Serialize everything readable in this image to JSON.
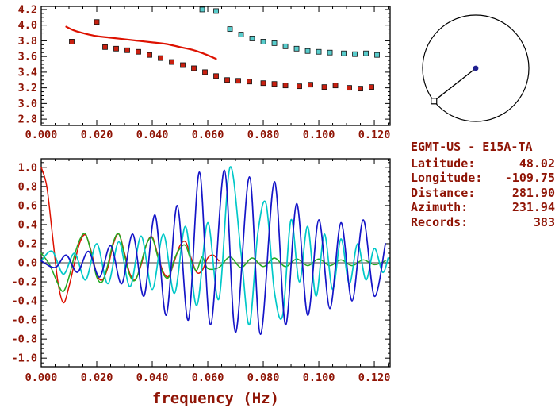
{
  "station": {
    "title": "EGMT-US - E15A-TA",
    "rows": [
      {
        "label": "Latitude:",
        "value": "48.02"
      },
      {
        "label": "Longitude:",
        "value": "-109.75"
      },
      {
        "label": "Distance:",
        "value": "281.90"
      },
      {
        "label": "Azimuth:",
        "value": "231.94"
      },
      {
        "label": "Records:",
        "value": "383"
      }
    ]
  },
  "compass": {
    "azimuth_deg": 231.94
  },
  "colors": {
    "text": "#8f1405",
    "frame": "#000000",
    "red": "#dd1100",
    "green": "#22aa22",
    "cyan": "#00c8c8",
    "blue": "#1515c8",
    "marker_red": "#c82010",
    "marker_cyan": "#58cccc",
    "dot_blue": "#202090"
  },
  "chart_data": [
    {
      "type": "scatter",
      "title": "group velocity dispersion",
      "xlabel": "",
      "ylabel": "",
      "xlim": [
        0.0,
        0.1257
      ],
      "ylim": [
        2.72,
        4.24
      ],
      "x_major": 0.02,
      "x_minor": 0.005,
      "y_major": 0.2,
      "y_minor": 0.05,
      "zero_line": false,
      "x_ticks": [
        {
          "v": 0.0,
          "label": "0.000"
        },
        {
          "v": 0.02,
          "label": "0.020"
        },
        {
          "v": 0.04,
          "label": "0.040"
        },
        {
          "v": 0.06,
          "label": "0.060"
        },
        {
          "v": 0.08,
          "label": "0.080"
        },
        {
          "v": 0.1,
          "label": "0.100"
        },
        {
          "v": 0.12,
          "label": "0.120"
        }
      ],
      "y_ticks": [
        {
          "v": 2.8,
          "label": "2.8"
        },
        {
          "v": 3.0,
          "label": "3.0"
        },
        {
          "v": 3.2,
          "label": "3.2"
        },
        {
          "v": 3.4,
          "label": "3.4"
        },
        {
          "v": 3.6,
          "label": "3.6"
        },
        {
          "v": 3.8,
          "label": "3.8"
        },
        {
          "v": 4.0,
          "label": "4.0"
        },
        {
          "v": 4.2,
          "label": "4.2"
        }
      ],
      "series": [
        {
          "name": "raw-group-velocity-squares",
          "marker": "square",
          "color": "#c82010",
          "width": 1,
          "points": [
            [
              0.011,
              3.79
            ],
            [
              0.02,
              4.04
            ],
            [
              0.023,
              3.72
            ],
            [
              0.027,
              3.7
            ],
            [
              0.031,
              3.68
            ],
            [
              0.035,
              3.66
            ],
            [
              0.039,
              3.62
            ],
            [
              0.043,
              3.58
            ],
            [
              0.047,
              3.53
            ],
            [
              0.051,
              3.49
            ],
            [
              0.055,
              3.45
            ],
            [
              0.059,
              3.4
            ],
            [
              0.063,
              3.35
            ],
            [
              0.067,
              3.3
            ],
            [
              0.071,
              3.29
            ],
            [
              0.075,
              3.28
            ],
            [
              0.08,
              3.26
            ],
            [
              0.084,
              3.25
            ],
            [
              0.088,
              3.23
            ],
            [
              0.093,
              3.22
            ],
            [
              0.097,
              3.24
            ],
            [
              0.102,
              3.21
            ],
            [
              0.106,
              3.23
            ],
            [
              0.111,
              3.2
            ],
            [
              0.115,
              3.19
            ],
            [
              0.119,
              3.21
            ]
          ]
        },
        {
          "name": "phase-velocity-squares",
          "marker": "square",
          "color": "#58cccc",
          "width": 1,
          "points": [
            [
              0.058,
              4.2
            ],
            [
              0.063,
              4.18
            ],
            [
              0.068,
              3.95
            ],
            [
              0.072,
              3.88
            ],
            [
              0.076,
              3.83
            ],
            [
              0.08,
              3.79
            ],
            [
              0.084,
              3.77
            ],
            [
              0.088,
              3.73
            ],
            [
              0.092,
              3.7
            ],
            [
              0.096,
              3.67
            ],
            [
              0.1,
              3.66
            ],
            [
              0.104,
              3.65
            ],
            [
              0.109,
              3.64
            ],
            [
              0.113,
              3.63
            ],
            [
              0.117,
              3.64
            ],
            [
              0.121,
              3.62
            ]
          ]
        },
        {
          "name": "reference-dispersion-curve",
          "marker": "line",
          "color": "#dd1100",
          "width": 2.2,
          "points": [
            [
              0.009,
              3.98
            ],
            [
              0.012,
              3.93
            ],
            [
              0.016,
              3.89
            ],
            [
              0.02,
              3.86
            ],
            [
              0.025,
              3.84
            ],
            [
              0.03,
              3.82
            ],
            [
              0.035,
              3.8
            ],
            [
              0.04,
              3.78
            ],
            [
              0.045,
              3.76
            ],
            [
              0.05,
              3.72
            ],
            [
              0.055,
              3.68
            ],
            [
              0.059,
              3.63
            ],
            [
              0.063,
              3.57
            ]
          ]
        }
      ]
    },
    {
      "type": "line",
      "title": "normalized spectra / correlation traces",
      "xlabel": "frequency (Hz)",
      "ylabel": "",
      "xlim": [
        0.0,
        0.1257
      ],
      "ylim": [
        -1.09,
        1.09
      ],
      "x_major": 0.02,
      "x_minor": 0.005,
      "y_major": 0.2,
      "y_minor": 0.05,
      "zero_line": true,
      "x_ticks": [
        {
          "v": 0.0,
          "label": "0.000"
        },
        {
          "v": 0.02,
          "label": "0.020"
        },
        {
          "v": 0.04,
          "label": "0.040"
        },
        {
          "v": 0.06,
          "label": "0.060"
        },
        {
          "v": 0.08,
          "label": "0.080"
        },
        {
          "v": 0.1,
          "label": "0.100"
        },
        {
          "v": 0.12,
          "label": "0.120"
        }
      ],
      "y_ticks": [
        {
          "v": 1.0,
          "label": "1.0"
        },
        {
          "v": 0.8,
          "label": "0.8"
        },
        {
          "v": 0.6,
          "label": "0.6"
        },
        {
          "v": 0.4,
          "label": "0.4"
        },
        {
          "v": 0.2,
          "label": "0.2"
        },
        {
          "v": 0.0,
          "label": "0.0"
        },
        {
          "v": -0.2,
          "label": "-0.2"
        },
        {
          "v": -0.4,
          "label": "-0.4"
        },
        {
          "v": -0.6,
          "label": "-0.6"
        },
        {
          "v": -0.8,
          "label": "-0.8"
        },
        {
          "v": -1.0,
          "label": "-1.0"
        }
      ],
      "series": [
        {
          "name": "red-waveform",
          "marker": "line",
          "color": "#dd1100",
          "width": 1.5,
          "points": [
            [
              0.0,
              1.0
            ],
            [
              0.002,
              0.8
            ],
            [
              0.004,
              0.3
            ],
            [
              0.006,
              -0.2
            ],
            [
              0.008,
              -0.42
            ],
            [
              0.01,
              -0.25
            ],
            [
              0.012,
              0.0
            ],
            [
              0.014,
              0.22
            ],
            [
              0.016,
              0.29
            ],
            [
              0.018,
              0.12
            ],
            [
              0.02,
              -0.12
            ],
            [
              0.022,
              -0.18
            ],
            [
              0.024,
              -0.05
            ],
            [
              0.026,
              0.2
            ],
            [
              0.028,
              0.3
            ],
            [
              0.03,
              0.1
            ],
            [
              0.032,
              -0.12
            ],
            [
              0.034,
              -0.17
            ],
            [
              0.036,
              -0.02
            ],
            [
              0.038,
              0.2
            ],
            [
              0.04,
              0.27
            ],
            [
              0.042,
              0.08
            ],
            [
              0.044,
              -0.1
            ],
            [
              0.046,
              -0.14
            ],
            [
              0.048,
              0.02
            ],
            [
              0.05,
              0.18
            ],
            [
              0.052,
              0.22
            ],
            [
              0.054,
              0.05
            ],
            [
              0.056,
              -0.1
            ],
            [
              0.058,
              -0.08
            ],
            [
              0.06,
              0.05
            ],
            [
              0.062,
              0.08
            ],
            [
              0.064,
              0.02
            ]
          ]
        },
        {
          "name": "green-waveform",
          "marker": "line",
          "color": "#22aa22",
          "width": 1.5,
          "points": [
            [
              0.0,
              0.1
            ],
            [
              0.003,
              -0.02
            ],
            [
              0.006,
              -0.22
            ],
            [
              0.008,
              -0.3
            ],
            [
              0.01,
              -0.15
            ],
            [
              0.012,
              0.08
            ],
            [
              0.014,
              0.25
            ],
            [
              0.016,
              0.3
            ],
            [
              0.018,
              0.1
            ],
            [
              0.02,
              -0.15
            ],
            [
              0.022,
              -0.2
            ],
            [
              0.024,
              -0.02
            ],
            [
              0.026,
              0.22
            ],
            [
              0.028,
              0.3
            ],
            [
              0.03,
              0.08
            ],
            [
              0.032,
              -0.14
            ],
            [
              0.034,
              -0.18
            ],
            [
              0.036,
              0.0
            ],
            [
              0.038,
              0.2
            ],
            [
              0.04,
              0.26
            ],
            [
              0.042,
              0.06
            ],
            [
              0.044,
              -0.12
            ],
            [
              0.046,
              -0.15
            ],
            [
              0.048,
              0.04
            ],
            [
              0.05,
              0.15
            ],
            [
              0.052,
              0.18
            ],
            [
              0.054,
              0.02
            ],
            [
              0.056,
              -0.08
            ],
            [
              0.058,
              0.06
            ],
            [
              0.06,
              -0.06
            ],
            [
              0.064,
              -0.05
            ],
            [
              0.068,
              0.06
            ],
            [
              0.072,
              -0.05
            ],
            [
              0.076,
              0.05
            ],
            [
              0.08,
              -0.04
            ],
            [
              0.084,
              0.05
            ],
            [
              0.088,
              -0.04
            ],
            [
              0.092,
              0.04
            ],
            [
              0.096,
              -0.03
            ],
            [
              0.1,
              0.04
            ],
            [
              0.104,
              -0.03
            ],
            [
              0.108,
              0.03
            ],
            [
              0.112,
              -0.03
            ],
            [
              0.116,
              0.03
            ],
            [
              0.12,
              -0.02
            ],
            [
              0.124,
              0.02
            ]
          ]
        },
        {
          "name": "cyan-waveform",
          "marker": "line",
          "color": "#00c8c8",
          "width": 1.7,
          "points": [
            [
              0.0,
              0.02
            ],
            [
              0.004,
              0.12
            ],
            [
              0.008,
              -0.12
            ],
            [
              0.012,
              0.1
            ],
            [
              0.016,
              -0.18
            ],
            [
              0.02,
              0.2
            ],
            [
              0.024,
              -0.22
            ],
            [
              0.028,
              0.22
            ],
            [
              0.032,
              -0.25
            ],
            [
              0.036,
              0.28
            ],
            [
              0.04,
              -0.28
            ],
            [
              0.044,
              0.3
            ],
            [
              0.048,
              -0.32
            ],
            [
              0.052,
              0.38
            ],
            [
              0.056,
              -0.45
            ],
            [
              0.06,
              0.42
            ],
            [
              0.064,
              -0.38
            ],
            [
              0.068,
              1.0
            ],
            [
              0.072,
              0.1
            ],
            [
              0.075,
              -0.65
            ],
            [
              0.078,
              0.3
            ],
            [
              0.081,
              0.62
            ],
            [
              0.084,
              -0.3
            ],
            [
              0.087,
              -0.55
            ],
            [
              0.09,
              0.45
            ],
            [
              0.093,
              -0.2
            ],
            [
              0.096,
              0.38
            ],
            [
              0.099,
              -0.35
            ],
            [
              0.102,
              0.3
            ],
            [
              0.105,
              -0.28
            ],
            [
              0.108,
              0.25
            ],
            [
              0.111,
              -0.22
            ],
            [
              0.114,
              0.2
            ],
            [
              0.117,
              -0.18
            ],
            [
              0.12,
              0.15
            ],
            [
              0.123,
              -0.1
            ],
            [
              0.125,
              0.05
            ]
          ]
        },
        {
          "name": "blue-waveform",
          "marker": "line",
          "color": "#1515c8",
          "width": 1.7,
          "points": [
            [
              0.0,
              0.02
            ],
            [
              0.005,
              -0.05
            ],
            [
              0.009,
              0.08
            ],
            [
              0.013,
              -0.1
            ],
            [
              0.017,
              0.12
            ],
            [
              0.021,
              -0.15
            ],
            [
              0.025,
              0.18
            ],
            [
              0.029,
              -0.22
            ],
            [
              0.033,
              0.3
            ],
            [
              0.037,
              -0.35
            ],
            [
              0.041,
              0.5
            ],
            [
              0.045,
              -0.55
            ],
            [
              0.049,
              0.6
            ],
            [
              0.053,
              -0.6
            ],
            [
              0.057,
              0.95
            ],
            [
              0.061,
              -0.65
            ],
            [
              0.066,
              0.97
            ],
            [
              0.07,
              -0.73
            ],
            [
              0.075,
              0.9
            ],
            [
              0.079,
              -0.75
            ],
            [
              0.084,
              0.85
            ],
            [
              0.088,
              -0.65
            ],
            [
              0.092,
              0.62
            ],
            [
              0.096,
              -0.55
            ],
            [
              0.1,
              0.45
            ],
            [
              0.104,
              -0.48
            ],
            [
              0.108,
              0.42
            ],
            [
              0.112,
              -0.4
            ],
            [
              0.116,
              0.45
            ],
            [
              0.12,
              -0.35
            ],
            [
              0.124,
              0.2
            ]
          ]
        }
      ]
    }
  ]
}
